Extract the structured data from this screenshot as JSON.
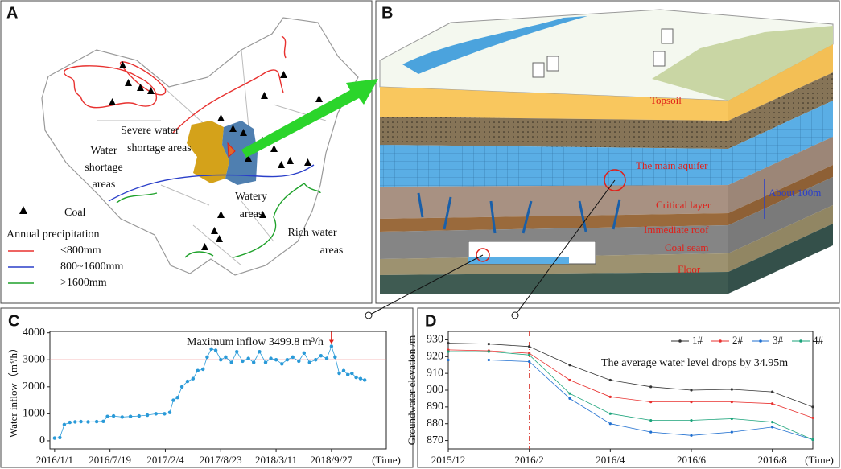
{
  "panels": {
    "A": {
      "label": "A",
      "regions": {
        "severe": [
          "Severe water",
          "shortage areas"
        ],
        "shortage": [
          "Water",
          "shortage",
          "areas"
        ],
        "watery": [
          "Watery",
          "areas"
        ],
        "rich": [
          "Rich water",
          "areas"
        ]
      },
      "legend": {
        "coal": "Coal",
        "precip_title": "Annual precipitation",
        "items": [
          {
            "label": "<800mm",
            "color": "#e8312f"
          },
          {
            "label": "800~1600mm",
            "color": "#2a3fc9"
          },
          {
            "label": ">1600mm",
            "color": "#1ea12a"
          }
        ]
      }
    },
    "B": {
      "label": "B",
      "layers": [
        "Topsoil",
        "The main aquifer",
        "Critical layer",
        "Immediate roof",
        "Coal seam",
        "Floor"
      ],
      "thickness": "About 100m"
    }
  },
  "chart_data": [
    {
      "type": "line",
      "panel": "C",
      "x_label": "(Time)",
      "y_label": "Water inflow（m³/h）",
      "xlim": [
        "2015/12/15",
        "2019/4/13"
      ],
      "xticks": [
        "2016/1/1",
        "2016/7/19",
        "2017/2/4",
        "2017/8/23",
        "2018/3/11",
        "2018/9/27"
      ],
      "ylim": [
        -300,
        4050
      ],
      "yticks": [
        0,
        1000,
        2000,
        3000,
        4000
      ],
      "reference_line": {
        "value": 3000,
        "color": "#f08080"
      },
      "annotation": "Maximum inflow 3499.8 m³/h",
      "x": [
        "2016/1/1",
        "2016/1/20",
        "2016/2/5",
        "2016/2/25",
        "2016/3/15",
        "2016/4/5",
        "2016/5/1",
        "2016/6/1",
        "2016/6/25",
        "2016/7/10",
        "2016/8/1",
        "2016/9/1",
        "2016/10/1",
        "2016/11/1",
        "2016/12/1",
        "2017/1/1",
        "2017/2/1",
        "2017/2/20",
        "2017/3/5",
        "2017/3/20",
        "2017/4/5",
        "2017/4/25",
        "2017/5/15",
        "2017/6/1",
        "2017/6/20",
        "2017/7/5",
        "2017/7/20",
        "2017/8/5",
        "2017/8/23",
        "2017/9/10",
        "2017/10/1",
        "2017/10/20",
        "2017/11/10",
        "2017/12/1",
        "2017/12/20",
        "2018/1/10",
        "2018/2/1",
        "2018/2/20",
        "2018/3/11",
        "2018/4/1",
        "2018/4/20",
        "2018/5/10",
        "2018/6/1",
        "2018/6/20",
        "2018/7/10",
        "2018/8/1",
        "2018/8/20",
        "2018/9/10",
        "2018/9/27",
        "2018/10/10",
        "2018/10/25",
        "2018/11/10",
        "2018/11/25",
        "2018/12/10",
        "2018/12/25",
        "2019/1/10",
        "2019/1/25"
      ],
      "series": [
        {
          "color": "#2a9ad8",
          "values": [
            100,
            120,
            600,
            680,
            700,
            710,
            700,
            710,
            720,
            900,
            920,
            880,
            900,
            920,
            950,
            1000,
            1000,
            1050,
            1500,
            1600,
            2000,
            2200,
            2300,
            2600,
            2650,
            3100,
            3400,
            3350,
            3000,
            3100,
            2900,
            3300,
            2950,
            3050,
            2900,
            3300,
            2900,
            3050,
            3000,
            2850,
            3000,
            3100,
            2950,
            3250,
            2900,
            3000,
            3150,
            3050,
            3499.8,
            3100,
            2500,
            2600,
            2450,
            2500,
            2350,
            2300,
            2250
          ]
        }
      ]
    },
    {
      "type": "line",
      "panel": "D",
      "x_label": "(Time)",
      "y_label": "Groundwater elevation /m",
      "xlim": [
        "2015/12",
        "2016/9"
      ],
      "xticks": [
        "2015/12",
        "2016/2",
        "2016/4",
        "2016/6",
        "2016/8"
      ],
      "ylim": [
        865,
        935
      ],
      "yticks": [
        870,
        880,
        890,
        900,
        910,
        920,
        930
      ],
      "event_line": {
        "x": "2016/2",
        "color": "#d9342b"
      },
      "annotation": "The average water level drops by 34.95m",
      "legend": "upper right",
      "x": [
        "2015/12",
        "2016/1",
        "2016/2",
        "2016/3",
        "2016/4",
        "2016/5",
        "2016/6",
        "2016/7",
        "2016/8",
        "2016/9"
      ],
      "series": [
        {
          "name": "1#",
          "color": "#333333",
          "values": [
            928,
            927.5,
            926,
            915,
            906,
            902,
            900,
            900.5,
            899,
            890
          ]
        },
        {
          "name": "2#",
          "color": "#e8312f",
          "values": [
            924,
            923.5,
            922,
            906,
            896,
            893,
            893,
            893,
            892,
            883.5
          ]
        },
        {
          "name": "3#",
          "color": "#1f6fd0",
          "values": [
            918,
            918,
            917,
            895,
            880,
            875,
            873,
            875,
            878,
            870.5
          ]
        },
        {
          "name": "4#",
          "color": "#1aa37a",
          "values": [
            923,
            923,
            921,
            898,
            886,
            882,
            882,
            883,
            881,
            870.5
          ]
        }
      ]
    }
  ]
}
